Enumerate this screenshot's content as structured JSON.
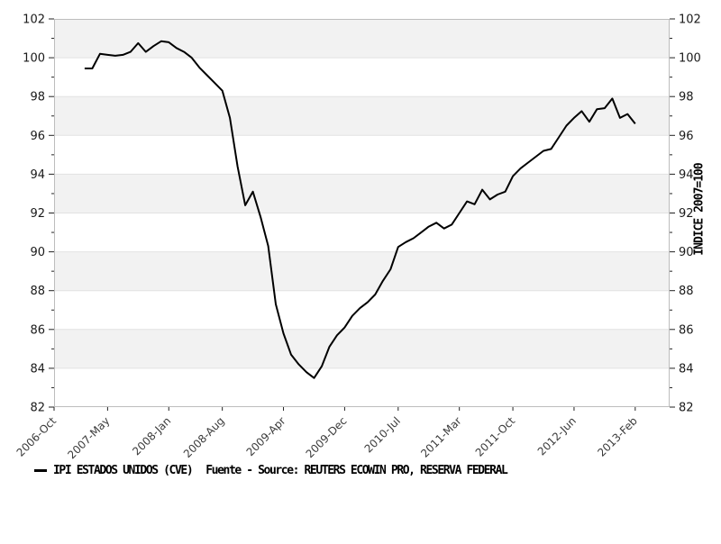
{
  "chart_data": {
    "type": "line",
    "title": "",
    "y_axis": {
      "min": 82,
      "max": 102,
      "major_step": 2,
      "minor_step": 1,
      "right_title": "INDICE 2007=100",
      "labels_both_sides": true
    },
    "x_axis": {
      "domain_start": "2006-Oct",
      "domain_months": 80.5,
      "tick_month_offsets": [
        0,
        7,
        15,
        22,
        30,
        38,
        45,
        53,
        60,
        68,
        76
      ],
      "tick_labels": [
        "2006-Oct",
        "2007-May",
        "2008-Jan",
        "2008-Aug",
        "2009-Apr",
        "2009-Dec",
        "2010-Jul",
        "2011-Mar",
        "2011-Oct",
        "2012-Jun",
        "2013-Feb"
      ]
    },
    "series": [
      {
        "name": "IPI ESTADOS UNIDOS (CVE)",
        "color": "#000000",
        "frequency": "monthly",
        "first_point": "2007-Feb",
        "last_point": "2013-Feb",
        "first_month_offset": 4,
        "values": [
          99.45,
          99.45,
          100.2,
          100.15,
          100.1,
          100.15,
          100.3,
          100.75,
          100.3,
          100.6,
          100.85,
          100.8,
          100.5,
          100.3,
          100.0,
          99.5,
          99.1,
          98.7,
          98.3,
          96.9,
          94.4,
          92.4,
          93.1,
          91.8,
          90.3,
          87.3,
          85.8,
          84.7,
          84.2,
          83.8,
          83.5,
          84.1,
          85.1,
          85.7,
          86.1,
          86.7,
          87.1,
          87.4,
          87.8,
          88.5,
          89.1,
          90.25,
          90.5,
          90.7,
          91.0,
          91.3,
          91.5,
          91.2,
          91.4,
          92.0,
          92.6,
          92.45,
          93.2,
          92.7,
          92.95,
          93.1,
          93.9,
          94.3,
          94.6,
          94.9,
          95.2,
          95.3,
          95.9,
          96.5,
          96.9,
          97.25,
          96.7,
          97.35,
          97.4,
          97.9,
          96.9,
          97.1,
          96.6
        ]
      }
    ],
    "grid": "horizontal-gray-bands-every-2-units",
    "legend_position": "bottom-left"
  },
  "legend": {
    "series_label": "IPI ESTADOS UNIDOS (CVE)",
    "source_label": "Fuente - Source: REUTERS ECOWIN PRO, RESERVA FEDERAL"
  },
  "colors": {
    "line": "#000000",
    "band": "#f2f2f2",
    "grid": "#e2e2e2",
    "border": "#bdbdbd",
    "tick": "#222222",
    "tick_label": "#1a1a1a",
    "x_label": "#3a3a3a"
  }
}
